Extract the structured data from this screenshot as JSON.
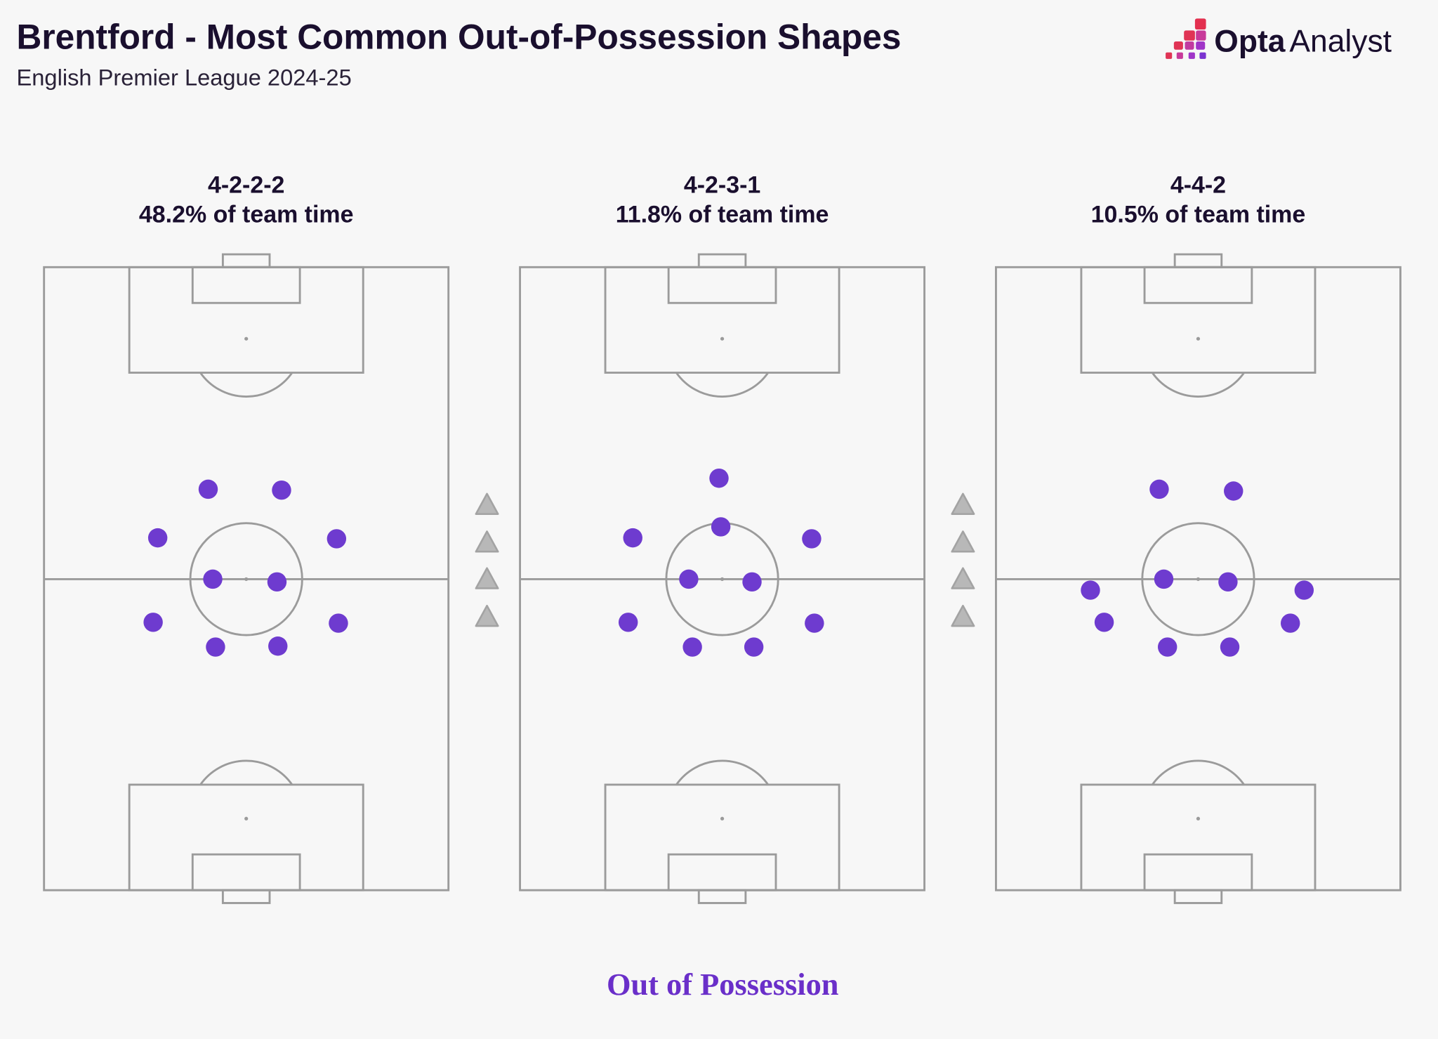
{
  "header": {
    "title": "Brentford - Most Common Out-of-Possession Shapes",
    "subtitle": "English Premier League 2024-25"
  },
  "logo": {
    "brand": "Opta",
    "product": "Analyst"
  },
  "formations": [
    {
      "name": "4-2-2-2",
      "share": "48.2% of team time",
      "share_value": 48.2
    },
    {
      "name": "4-2-3-1",
      "share": "11.8% of team time",
      "share_value": 11.8
    },
    {
      "name": "4-4-2",
      "share": "10.5% of team time",
      "share_value": 10.5
    }
  ],
  "footer": {
    "label": "Out of Possession"
  },
  "colors": {
    "player": "#6e3bcf",
    "footer": "#6a2fc9",
    "pitch_line": "#9b9b9b"
  }
}
